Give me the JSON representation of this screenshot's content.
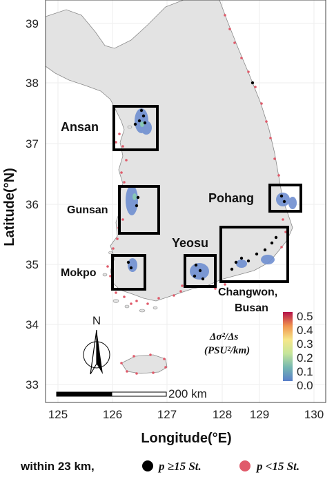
{
  "map": {
    "x_axis": {
      "title": "Longitude(°E)",
      "ticks": [
        "125",
        "126",
        "127",
        "128",
        "129",
        "130"
      ]
    },
    "y_axis": {
      "title": "Latitude(°N)",
      "ticks": [
        "39",
        "38",
        "37",
        "36",
        "35",
        "34",
        "33"
      ]
    },
    "regions": [
      {
        "name": "Ansan"
      },
      {
        "name": "Gunsan"
      },
      {
        "name": "Mokpo"
      },
      {
        "name": "Yeosu"
      },
      {
        "name": "Pohang"
      },
      {
        "name": "Changwon,"
      },
      {
        "name": "Busan"
      }
    ],
    "north_label": "N",
    "scale_bar_label": "200 km",
    "colorbar": {
      "title_line1": "Δσ²/Δs",
      "title_line2": "(PSU²/km)",
      "ticks": [
        "0.5",
        "0.4",
        "0.3",
        "0.2",
        "0.1",
        "0.0"
      ],
      "min": 0.0,
      "max": 0.5
    },
    "legend": {
      "prefix": "within 23 km,",
      "item1": "p ≥15 St.",
      "item2": "p <15 St.",
      "item1_color": "#000000",
      "item2_color": "#e05a6a"
    },
    "colors": {
      "land": "#e3e3e3",
      "ocean": "#ffffff",
      "grid": "#eeeeee"
    }
  }
}
